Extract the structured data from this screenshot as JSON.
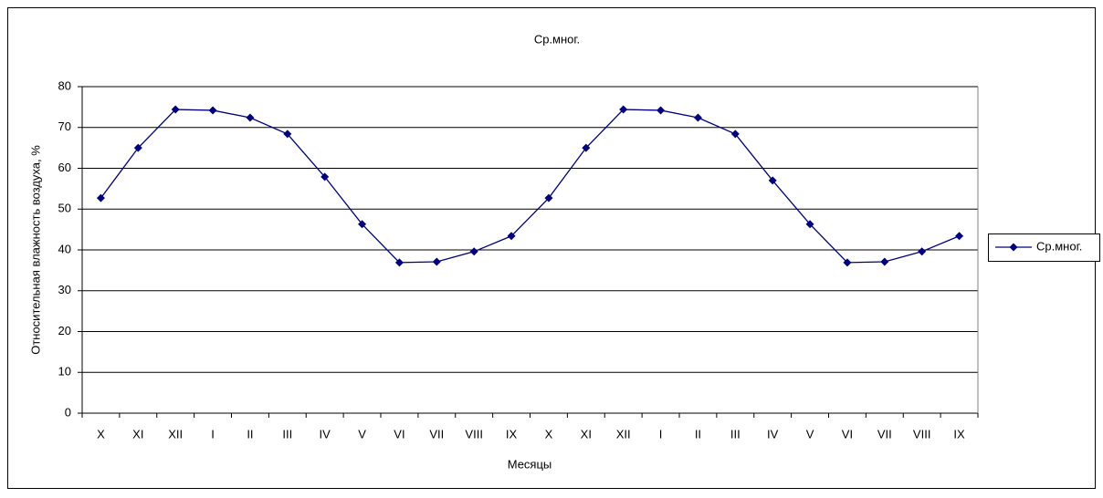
{
  "chart_data": {
    "type": "line",
    "title": "Ср.мног.",
    "x_label": "Месяцы",
    "y_label": "Относительная влажность воздуха,  %",
    "categories": [
      "X",
      "XI",
      "XII",
      "I",
      "II",
      "III",
      "IV",
      "V",
      "VI",
      "VII",
      "VIII",
      "IX",
      "X",
      "XI",
      "XII",
      "I",
      "II",
      "III",
      "IV",
      "V",
      "VI",
      "VII",
      "VIII",
      "IX"
    ],
    "series": [
      {
        "name": "Ср.мног.",
        "color": "#000080",
        "values": [
          52.7,
          65.0,
          74.4,
          74.2,
          72.4,
          68.4,
          57.9,
          46.3,
          36.9,
          37.1,
          39.6,
          43.4,
          52.7,
          65.0,
          74.4,
          74.2,
          72.4,
          68.4,
          57.0,
          46.3,
          36.9,
          37.1,
          39.6,
          43.4
        ]
      }
    ],
    "ylim": [
      0,
      80
    ],
    "yticks": [
      0,
      10,
      20,
      30,
      40,
      50,
      60,
      70,
      80
    ],
    "grid": true,
    "legend": "right"
  }
}
